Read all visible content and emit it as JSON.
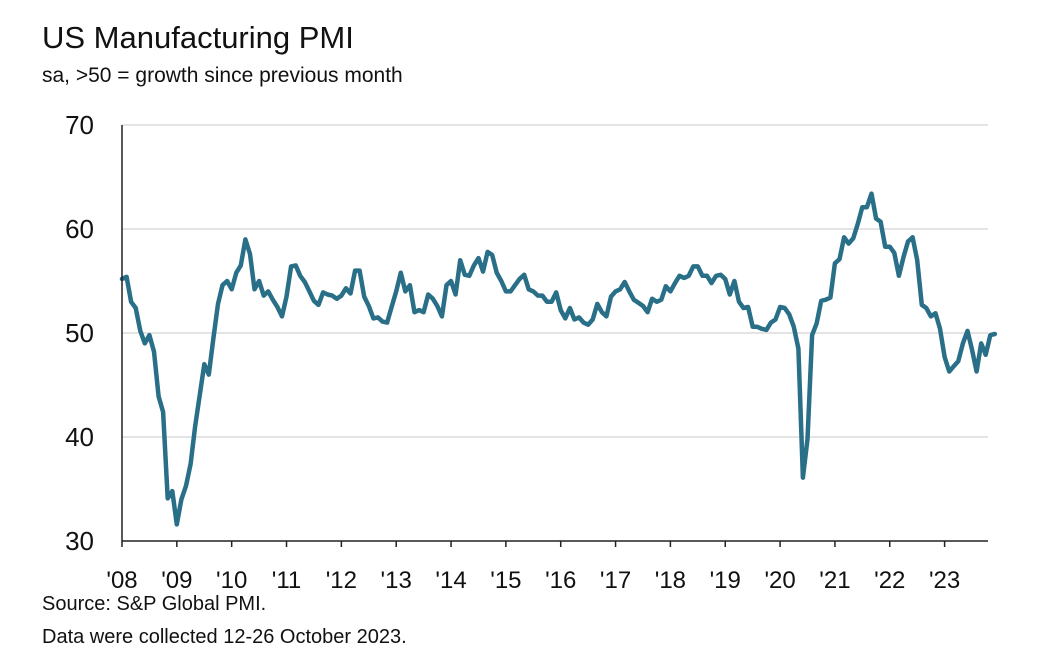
{
  "title": "US Manufacturing PMI",
  "subtitle": "sa, >50 = growth since previous month",
  "source": "Source: S&P Global PMI.",
  "collection_note": "Data were collected 12-26 October 2023.",
  "colors": {
    "line": "#2a6f88",
    "grid": "#d4d4d4",
    "axis": "#222222",
    "text": "#111111"
  },
  "chart_data": {
    "type": "line",
    "title": "US Manufacturing PMI",
    "subtitle": "sa, >50 = growth since previous month",
    "xlabel": "",
    "ylabel": "",
    "ylim": [
      30,
      70
    ],
    "yticks": [
      30,
      40,
      50,
      60,
      70
    ],
    "xlim": [
      "2008-01",
      "2023-10"
    ],
    "xtick_labels": [
      "'08",
      "'09",
      "'10",
      "'11",
      "'12",
      "'13",
      "'14",
      "'15",
      "'16",
      "'17",
      "'18",
      "'19",
      "'20",
      "'21",
      "'22",
      "'23"
    ],
    "grid": "horizontal",
    "legend": "none",
    "series": [
      {
        "points": [
          [
            "2008-01",
            55.2
          ],
          [
            "2008-02",
            55.4
          ],
          [
            "2008-03",
            53.0
          ],
          [
            "2008-04",
            52.4
          ],
          [
            "2008-05",
            50.2
          ],
          [
            "2008-06",
            49.0
          ],
          [
            "2008-07",
            49.8
          ],
          [
            "2008-08",
            48.2
          ],
          [
            "2008-09",
            43.9
          ],
          [
            "2008-10",
            42.4
          ],
          [
            "2008-11",
            34.1
          ],
          [
            "2008-12",
            34.8
          ],
          [
            "2009-01",
            31.6
          ],
          [
            "2009-02",
            34.0
          ],
          [
            "2009-03",
            35.3
          ],
          [
            "2009-04",
            37.4
          ],
          [
            "2009-05",
            41.0
          ],
          [
            "2009-06",
            44.0
          ],
          [
            "2009-07",
            47.0
          ],
          [
            "2009-08",
            46.0
          ],
          [
            "2009-09",
            49.5
          ],
          [
            "2009-10",
            52.8
          ],
          [
            "2009-11",
            54.6
          ],
          [
            "2009-12",
            55.0
          ],
          [
            "2010-01",
            54.2
          ],
          [
            "2010-02",
            55.8
          ],
          [
            "2010-03",
            56.5
          ],
          [
            "2010-04",
            59.0
          ],
          [
            "2010-05",
            57.6
          ],
          [
            "2010-06",
            54.2
          ],
          [
            "2010-07",
            55.0
          ],
          [
            "2010-08",
            53.6
          ],
          [
            "2010-09",
            54.0
          ],
          [
            "2010-10",
            53.2
          ],
          [
            "2010-11",
            52.5
          ],
          [
            "2010-12",
            51.6
          ],
          [
            "2011-01",
            53.5
          ],
          [
            "2011-02",
            56.4
          ],
          [
            "2011-03",
            56.5
          ],
          [
            "2011-04",
            55.5
          ],
          [
            "2011-05",
            54.9
          ],
          [
            "2011-06",
            54.0
          ],
          [
            "2011-07",
            53.1
          ],
          [
            "2011-08",
            52.7
          ],
          [
            "2011-09",
            53.9
          ],
          [
            "2011-10",
            53.7
          ],
          [
            "2011-11",
            53.6
          ],
          [
            "2011-12",
            53.3
          ],
          [
            "2012-01",
            53.6
          ],
          [
            "2012-02",
            54.3
          ],
          [
            "2012-03",
            53.8
          ],
          [
            "2012-04",
            56.0
          ],
          [
            "2012-05",
            56.0
          ],
          [
            "2012-06",
            53.5
          ],
          [
            "2012-07",
            52.6
          ],
          [
            "2012-08",
            51.4
          ],
          [
            "2012-09",
            51.5
          ],
          [
            "2012-10",
            51.1
          ],
          [
            "2012-11",
            51.0
          ],
          [
            "2012-12",
            52.5
          ],
          [
            "2013-01",
            54.0
          ],
          [
            "2013-02",
            55.8
          ],
          [
            "2013-03",
            54.0
          ],
          [
            "2013-04",
            54.6
          ],
          [
            "2013-05",
            52.0
          ],
          [
            "2013-06",
            52.2
          ],
          [
            "2013-07",
            52.0
          ],
          [
            "2013-08",
            53.7
          ],
          [
            "2013-09",
            53.3
          ],
          [
            "2013-10",
            52.6
          ],
          [
            "2013-11",
            51.6
          ],
          [
            "2013-12",
            54.6
          ],
          [
            "2014-01",
            55.0
          ],
          [
            "2014-02",
            53.7
          ],
          [
            "2014-03",
            57.0
          ],
          [
            "2014-04",
            55.6
          ],
          [
            "2014-05",
            55.5
          ],
          [
            "2014-06",
            56.5
          ],
          [
            "2014-07",
            57.2
          ],
          [
            "2014-08",
            55.9
          ],
          [
            "2014-09",
            57.8
          ],
          [
            "2014-10",
            57.5
          ],
          [
            "2014-11",
            55.8
          ],
          [
            "2014-12",
            55.0
          ],
          [
            "2015-01",
            54.0
          ],
          [
            "2015-02",
            54.0
          ],
          [
            "2015-03",
            54.6
          ],
          [
            "2015-04",
            55.2
          ],
          [
            "2015-05",
            55.6
          ],
          [
            "2015-06",
            54.2
          ],
          [
            "2015-07",
            54.0
          ],
          [
            "2015-08",
            53.6
          ],
          [
            "2015-09",
            53.6
          ],
          [
            "2015-10",
            53.0
          ],
          [
            "2015-11",
            53.0
          ],
          [
            "2015-12",
            53.9
          ],
          [
            "2016-01",
            52.2
          ],
          [
            "2016-02",
            51.4
          ],
          [
            "2016-03",
            52.4
          ],
          [
            "2016-04",
            51.3
          ],
          [
            "2016-05",
            51.5
          ],
          [
            "2016-06",
            51.0
          ],
          [
            "2016-07",
            50.8
          ],
          [
            "2016-08",
            51.3
          ],
          [
            "2016-09",
            52.8
          ],
          [
            "2016-10",
            52.0
          ],
          [
            "2016-11",
            51.6
          ],
          [
            "2016-12",
            53.5
          ],
          [
            "2017-01",
            54.0
          ],
          [
            "2017-02",
            54.2
          ],
          [
            "2017-03",
            54.9
          ],
          [
            "2017-04",
            54.0
          ],
          [
            "2017-05",
            53.2
          ],
          [
            "2017-06",
            52.9
          ],
          [
            "2017-07",
            52.6
          ],
          [
            "2017-08",
            52.0
          ],
          [
            "2017-09",
            53.3
          ],
          [
            "2017-10",
            53.0
          ],
          [
            "2017-11",
            53.2
          ],
          [
            "2017-12",
            54.5
          ],
          [
            "2018-01",
            54.0
          ],
          [
            "2018-02",
            54.8
          ],
          [
            "2018-03",
            55.5
          ],
          [
            "2018-04",
            55.3
          ],
          [
            "2018-05",
            55.5
          ],
          [
            "2018-06",
            56.4
          ],
          [
            "2018-07",
            56.4
          ],
          [
            "2018-08",
            55.5
          ],
          [
            "2018-09",
            55.5
          ],
          [
            "2018-10",
            54.8
          ],
          [
            "2018-11",
            55.5
          ],
          [
            "2018-12",
            55.6
          ],
          [
            "2019-01",
            55.2
          ],
          [
            "2019-02",
            53.7
          ],
          [
            "2019-03",
            55.0
          ],
          [
            "2019-04",
            53.0
          ],
          [
            "2019-05",
            52.4
          ],
          [
            "2019-06",
            52.5
          ],
          [
            "2019-07",
            50.6
          ],
          [
            "2019-08",
            50.6
          ],
          [
            "2019-09",
            50.4
          ],
          [
            "2019-10",
            50.3
          ],
          [
            "2019-11",
            51.0
          ],
          [
            "2019-12",
            51.3
          ],
          [
            "2020-01",
            52.5
          ],
          [
            "2020-02",
            52.4
          ],
          [
            "2020-03",
            51.8
          ],
          [
            "2020-04",
            50.6
          ],
          [
            "2020-05",
            48.5
          ],
          [
            "2020-06",
            36.1
          ],
          [
            "2020-07",
            39.8
          ],
          [
            "2020-08",
            49.8
          ],
          [
            "2020-09",
            50.9
          ],
          [
            "2020-10",
            53.1
          ],
          [
            "2020-11",
            53.2
          ],
          [
            "2020-12",
            53.4
          ],
          [
            "2021-01",
            56.7
          ],
          [
            "2021-02",
            57.1
          ],
          [
            "2021-03",
            59.2
          ],
          [
            "2021-04",
            58.6
          ],
          [
            "2021-05",
            59.1
          ],
          [
            "2021-06",
            60.5
          ],
          [
            "2021-07",
            62.1
          ],
          [
            "2021-08",
            62.1
          ],
          [
            "2021-09",
            63.4
          ],
          [
            "2021-10",
            61.0
          ],
          [
            "2021-11",
            60.7
          ],
          [
            "2021-12",
            58.3
          ],
          [
            "2022-01",
            58.3
          ],
          [
            "2022-02",
            57.7
          ],
          [
            "2022-03",
            55.5
          ],
          [
            "2022-04",
            57.3
          ],
          [
            "2022-05",
            58.8
          ],
          [
            "2022-06",
            59.2
          ],
          [
            "2022-07",
            57.0
          ],
          [
            "2022-08",
            52.7
          ],
          [
            "2022-09",
            52.4
          ],
          [
            "2022-10",
            51.6
          ],
          [
            "2022-11",
            51.9
          ],
          [
            "2022-12",
            50.4
          ],
          [
            "2023-01",
            47.7
          ],
          [
            "2023-02",
            46.3
          ],
          [
            "2023-03",
            46.8
          ],
          [
            "2023-04",
            47.3
          ],
          [
            "2023-05",
            49.0
          ],
          [
            "2023-06",
            50.2
          ],
          [
            "2023-07",
            48.4
          ],
          [
            "2023-08",
            46.3
          ],
          [
            "2023-09",
            49.0
          ],
          [
            "2023-10",
            47.9
          ],
          [
            "2023-11",
            49.8
          ],
          [
            "2023-12",
            49.9
          ]
        ]
      }
    ]
  }
}
